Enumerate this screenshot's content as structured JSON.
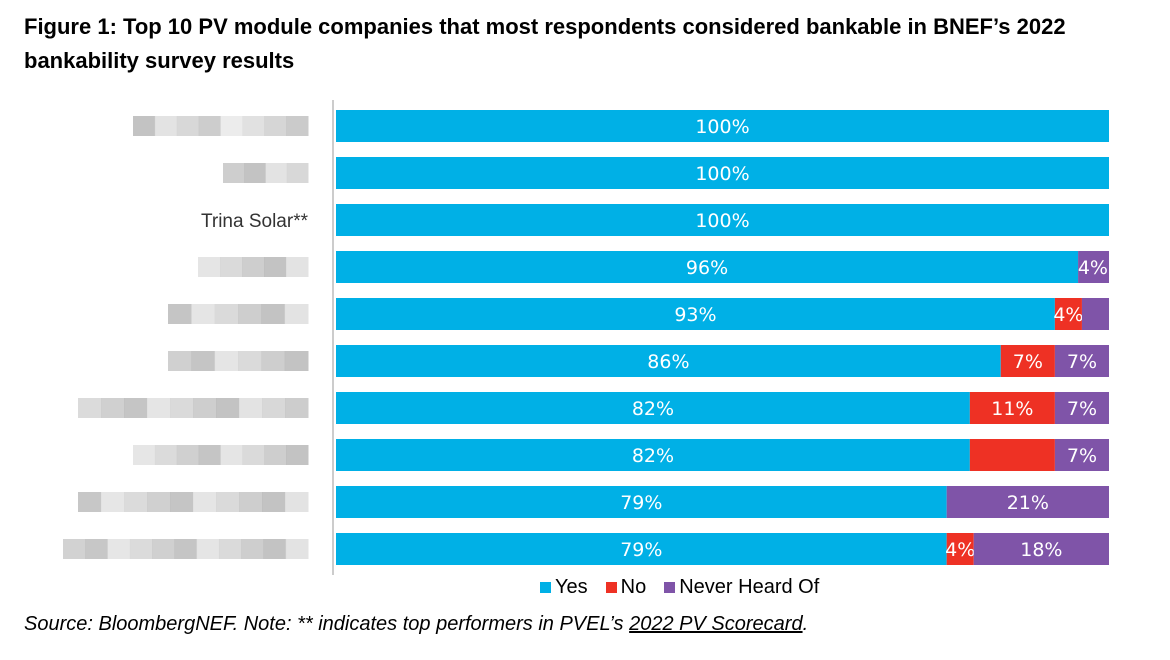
{
  "title": "Figure 1:  Top 10 PV module companies that most respondents considered bankable in BNEF’s 2022 bankability survey results",
  "source": {
    "prefix": "Source: BloombergNEF. Note: ** indicates top performers in PVEL’s ",
    "link": "2022 PV Scorecard",
    "suffix": "."
  },
  "colors": {
    "yes": "#00B0E6",
    "no": "#EE3124",
    "never": "#7F54A8",
    "axis": "#999999",
    "blur": "#c8c8c8"
  },
  "chart_data": {
    "type": "bar",
    "orientation": "horizontal",
    "stacked": true,
    "xlim": [
      0,
      100
    ],
    "categories": [
      "",
      "",
      "Trina Solar**",
      "",
      "",
      "",
      "",
      "",
      "",
      ""
    ],
    "series": [
      {
        "name": "Yes",
        "values": [
          100,
          100,
          100,
          96,
          93,
          86,
          82,
          82,
          79,
          79
        ],
        "labels": [
          "100%",
          "100%",
          "100%",
          "96%",
          "93%",
          "86%",
          "82%",
          "82%",
          "79%",
          "79%"
        ]
      },
      {
        "name": "No",
        "values": [
          0,
          0,
          0,
          0,
          3.5,
          7,
          11,
          11,
          0,
          3.5
        ],
        "labels": [
          "",
          "",
          "",
          "",
          "4%",
          "7%",
          "11%",
          "",
          "",
          "4%"
        ]
      },
      {
        "name": "Never Heard Of",
        "values": [
          0,
          0,
          0,
          4,
          3.5,
          7,
          7,
          7,
          21,
          17.5
        ],
        "labels": [
          "",
          "",
          "",
          "4%",
          "",
          "7%",
          "7%",
          "7%",
          "21%",
          "18%"
        ]
      }
    ],
    "legend": {
      "position": "bottom",
      "entries": [
        "Yes",
        "No",
        "Never Heard Of"
      ]
    },
    "grid": false,
    "xaxis_visible": false
  }
}
